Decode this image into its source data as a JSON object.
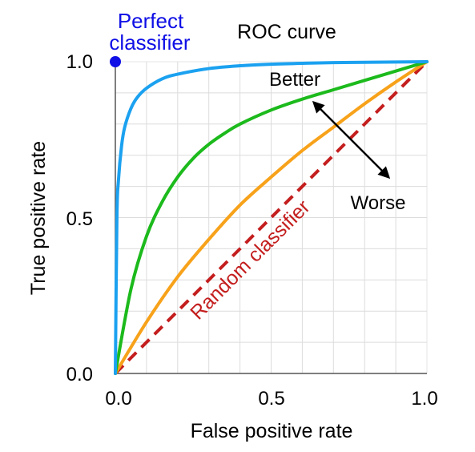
{
  "chart_data": {
    "type": "line",
    "title": "ROC curve",
    "xlabel": "False positive rate",
    "ylabel": "True positive rate",
    "xlim": [
      0,
      1
    ],
    "ylim": [
      0,
      1
    ],
    "xticks": [
      "0.0",
      "0.5",
      "1.0"
    ],
    "yticks": [
      "0.0",
      "0.5",
      "1.0"
    ],
    "grid": true,
    "grid_step": 0.1,
    "series": [
      {
        "color": "#1ba1f0",
        "x": [
          0,
          0.005,
          0.01,
          0.02,
          0.03,
          0.05,
          0.07,
          0.1,
          0.15,
          0.2,
          0.3,
          0.4,
          0.5,
          0.6,
          0.7,
          0.8,
          0.9,
          1.0
        ],
        "y": [
          0,
          0.5,
          0.62,
          0.73,
          0.79,
          0.85,
          0.885,
          0.915,
          0.945,
          0.96,
          0.978,
          0.987,
          0.992,
          0.995,
          0.997,
          0.998,
          0.999,
          1.0
        ]
      },
      {
        "color": "#1cba1c",
        "x": [
          0,
          0.05,
          0.1,
          0.15,
          0.2,
          0.25,
          0.3,
          0.35,
          0.4,
          0.5,
          0.6,
          0.7,
          0.8,
          0.9,
          1.0
        ],
        "y": [
          0,
          0.27,
          0.44,
          0.55,
          0.63,
          0.69,
          0.735,
          0.77,
          0.8,
          0.845,
          0.88,
          0.91,
          0.94,
          0.97,
          1.0
        ]
      },
      {
        "color": "#f7a21a",
        "x": [
          0,
          0.1,
          0.2,
          0.3,
          0.4,
          0.5,
          0.6,
          0.7,
          0.8,
          0.9,
          1.0
        ],
        "y": [
          0,
          0.165,
          0.31,
          0.43,
          0.54,
          0.63,
          0.715,
          0.79,
          0.865,
          0.935,
          1.0
        ]
      },
      {
        "name": "Random classifier",
        "color": "#c41e1e",
        "dashed": true,
        "x": [
          0,
          1
        ],
        "y": [
          0,
          1
        ]
      }
    ],
    "points": [
      {
        "name": "Perfect classifier",
        "x": 0,
        "y": 1,
        "color": "#0f0fe6"
      }
    ],
    "annotations": [
      {
        "text": "Better"
      },
      {
        "text": "Worse"
      }
    ]
  },
  "labels": {
    "title": "ROC curve",
    "xlabel": "False positive rate",
    "ylabel": "True positive rate",
    "perfect_line1": "Perfect",
    "perfect_line2": "classifier",
    "random": "Random classifier",
    "better": "Better",
    "worse": "Worse",
    "x0": "0.0",
    "x1": "0.5",
    "x2": "1.0",
    "y0": "0.0",
    "y1": "0.5",
    "y2": "1.0"
  }
}
